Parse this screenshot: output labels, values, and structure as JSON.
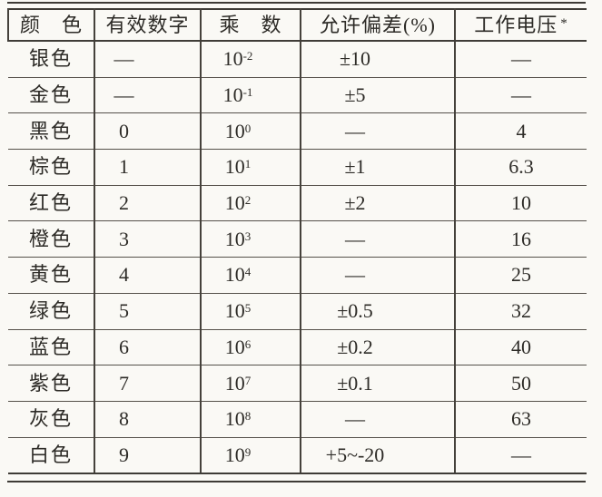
{
  "page": {
    "background": "#faf9f5",
    "rule_color": "#3e3b36",
    "text_color": "#2d2b27",
    "description": "Scanned book table: resistor colour-code values"
  },
  "table": {
    "columns": [
      {
        "label": "颜　色"
      },
      {
        "label": "有效数字"
      },
      {
        "label": "乘　数"
      },
      {
        "label": "允许偏差(%)"
      },
      {
        "label": "工作电压",
        "sup": "*"
      }
    ],
    "rows": [
      {
        "color": "银色",
        "digit": "—",
        "mult_base": "10",
        "mult_exp": "-2",
        "tolerance": "±10",
        "voltage": "—"
      },
      {
        "color": "金色",
        "digit": "—",
        "mult_base": "10",
        "mult_exp": "-1",
        "tolerance": "±5",
        "voltage": "—"
      },
      {
        "color": "黑色",
        "digit": "0",
        "mult_base": "10",
        "mult_exp": "0",
        "tolerance": "—",
        "voltage": "4"
      },
      {
        "color": "棕色",
        "digit": "1",
        "mult_base": "10",
        "mult_exp": "1",
        "tolerance": "±1",
        "voltage": "6.3"
      },
      {
        "color": "红色",
        "digit": "2",
        "mult_base": "10",
        "mult_exp": "2",
        "tolerance": "±2",
        "voltage": "10"
      },
      {
        "color": "橙色",
        "digit": "3",
        "mult_base": "10",
        "mult_exp": "3",
        "tolerance": "—",
        "voltage": "16"
      },
      {
        "color": "黄色",
        "digit": "4",
        "mult_base": "10",
        "mult_exp": "4",
        "tolerance": "—",
        "voltage": "25"
      },
      {
        "color": "绿色",
        "digit": "5",
        "mult_base": "10",
        "mult_exp": "5",
        "tolerance": "±0.5",
        "voltage": "32"
      },
      {
        "color": "蓝色",
        "digit": "6",
        "mult_base": "10",
        "mult_exp": "6",
        "tolerance": "±0.2",
        "voltage": "40"
      },
      {
        "color": "紫色",
        "digit": "7",
        "mult_base": "10",
        "mult_exp": "7",
        "tolerance": "±0.1",
        "voltage": "50"
      },
      {
        "color": "灰色",
        "digit": "8",
        "mult_base": "10",
        "mult_exp": "8",
        "tolerance": "—",
        "voltage": "63"
      },
      {
        "color": "白色",
        "digit": "9",
        "mult_base": "10",
        "mult_exp": "9",
        "tolerance": "+5~-20",
        "voltage": "—"
      }
    ]
  }
}
